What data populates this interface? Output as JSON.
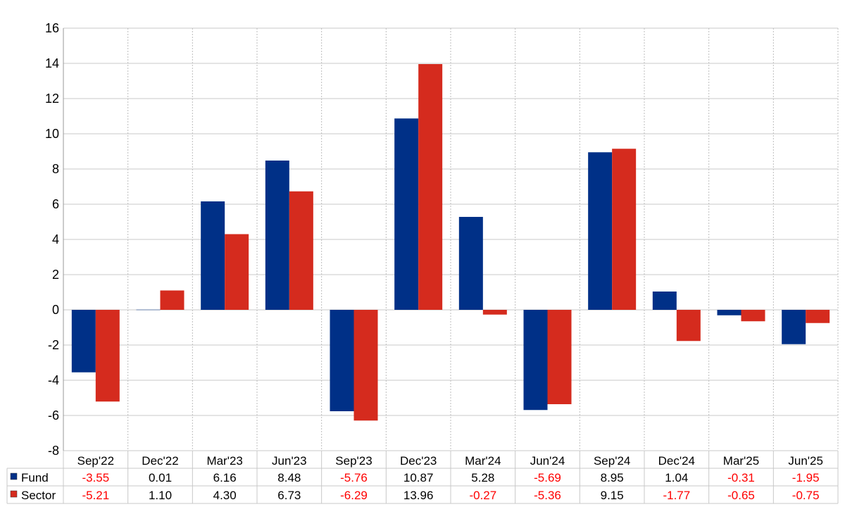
{
  "chart_data": {
    "type": "bar",
    "categories": [
      "Sep'22",
      "Dec'22",
      "Mar'23",
      "Jun'23",
      "Sep'23",
      "Dec'23",
      "Mar'24",
      "Jun'24",
      "Sep'24",
      "Dec'24",
      "Mar'25",
      "Jun'25"
    ],
    "series": [
      {
        "name": "Fund",
        "color": "#003087",
        "values": [
          -3.55,
          0.01,
          6.16,
          8.48,
          -5.76,
          10.87,
          5.28,
          -5.69,
          8.95,
          1.04,
          -0.31,
          -1.95
        ],
        "labels": [
          "-3.55",
          "0.01",
          "6.16",
          "8.48",
          "-5.76",
          "10.87",
          "5.28",
          "-5.69",
          "8.95",
          "1.04",
          "-0.31",
          "-1.95"
        ]
      },
      {
        "name": "Sector",
        "color": "#d52b1e",
        "values": [
          -5.21,
          1.1,
          4.3,
          6.73,
          -6.29,
          13.96,
          -0.27,
          -5.36,
          9.15,
          -1.77,
          -0.65,
          -0.75
        ],
        "labels": [
          "-5.21",
          "1.10",
          "4.30",
          "6.73",
          "-6.29",
          "13.96",
          "-0.27",
          "-5.36",
          "9.15",
          "-1.77",
          "-0.65",
          "-0.75"
        ]
      }
    ],
    "yticks": [
      "16",
      "14",
      "12",
      "10",
      "8",
      "6",
      "4",
      "2",
      "0",
      "-2",
      "-4",
      "-6",
      "-8"
    ],
    "ylim": [
      -8,
      16
    ],
    "title": "",
    "xlabel": "",
    "ylabel": "",
    "grid": true,
    "legend": "data table rows below chart",
    "negative_label_color": "#ff0000",
    "positive_label_color": "#000000"
  }
}
